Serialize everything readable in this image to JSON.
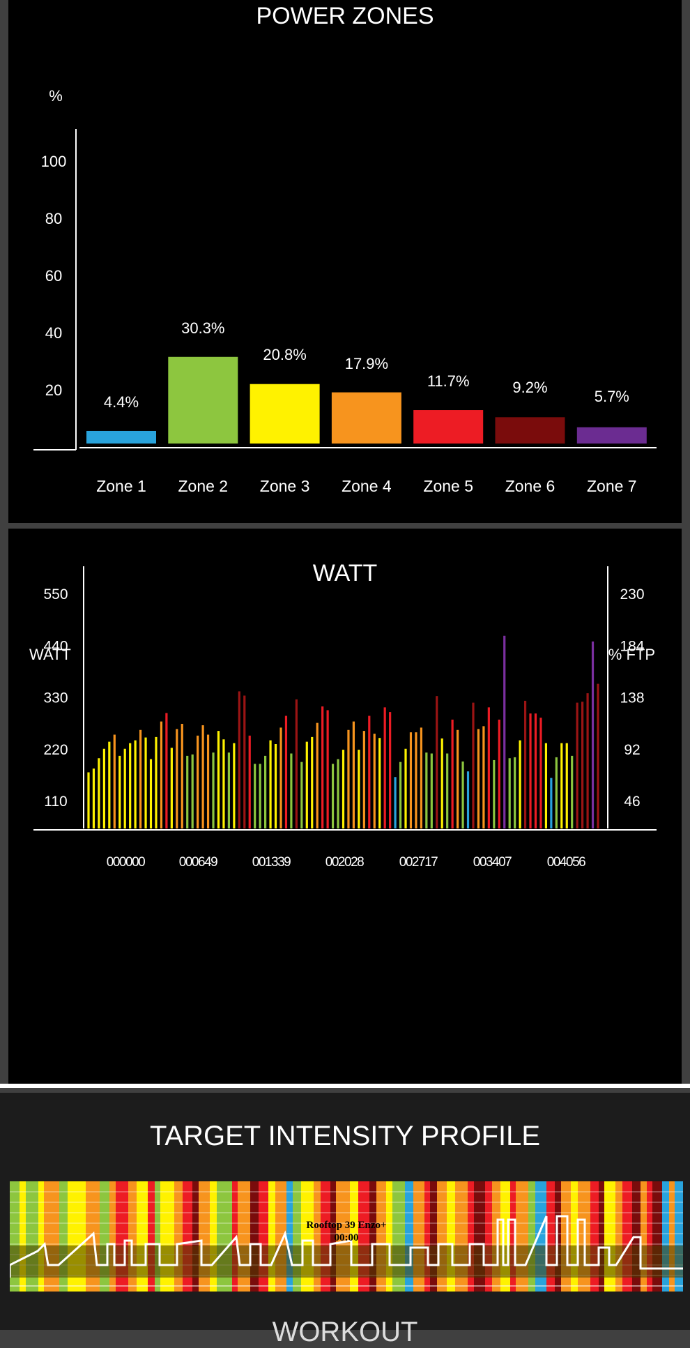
{
  "power_zones": {
    "title": "POWER ZONES",
    "chart_data": {
      "type": "bar",
      "ylabel": "%",
      "ylim": [
        0,
        100
      ],
      "yticks": [
        20,
        40,
        60,
        80,
        100
      ],
      "categories": [
        "Zone 1",
        "Zone 2",
        "Zone 3",
        "Zone 4",
        "Zone 5",
        "Zone 6",
        "Zone 7"
      ],
      "values": [
        4.4,
        30.3,
        20.8,
        17.9,
        11.7,
        9.2,
        5.7
      ],
      "data_labels": [
        "4.4%",
        "30.3%",
        "20.8%",
        "17.9%",
        "11.7%",
        "9.2%",
        "5.7%"
      ],
      "colors": [
        "#29a3dc",
        "#8dc63f",
        "#fff200",
        "#f7941e",
        "#ed1c24",
        "#7a0c0c",
        "#6b2c91"
      ]
    }
  },
  "watt": {
    "title": "WATT",
    "chart_data": {
      "type": "bar",
      "ylabel": "WATT",
      "ylabel_right": "% FTP",
      "ylim": [
        60,
        610
      ],
      "yticks": [
        110,
        220,
        330,
        440,
        550
      ],
      "yticks_right": [
        "46",
        "92",
        "138",
        "184",
        "230"
      ],
      "xticks": [
        "000000",
        "000649",
        "001339",
        "002028",
        "002717",
        "003407",
        "004056"
      ],
      "values": [
        170,
        178,
        200,
        220,
        235,
        250,
        205,
        220,
        232,
        238,
        260,
        244,
        198,
        245,
        278,
        296,
        222,
        262,
        273,
        205,
        208,
        248,
        270,
        250,
        212,
        258,
        240,
        212,
        232,
        342,
        333,
        248,
        188,
        188,
        205,
        238,
        230,
        265,
        290,
        210,
        325,
        192,
        235,
        245,
        275,
        310,
        302,
        188,
        198,
        218,
        260,
        278,
        218,
        258,
        290,
        252,
        243,
        308,
        298,
        160,
        192,
        220,
        255,
        255,
        265,
        212,
        210,
        332,
        242,
        210,
        282,
        260,
        193,
        172,
        318,
        262,
        268,
        308,
        196,
        282,
        460,
        200,
        202,
        238,
        322,
        295,
        295,
        286,
        232,
        158,
        202,
        232,
        232,
        205,
        318,
        320,
        338,
        448,
        358
      ],
      "bar_zones": [
        3,
        3,
        3,
        3,
        3,
        4,
        3,
        3,
        3,
        3,
        4,
        3,
        3,
        3,
        4,
        5,
        3,
        4,
        4,
        2,
        2,
        4,
        4,
        4,
        2,
        3,
        3,
        2,
        3,
        6,
        6,
        5,
        2,
        2,
        2,
        3,
        3,
        4,
        5,
        2,
        6,
        2,
        3,
        3,
        4,
        5,
        5,
        2,
        2,
        3,
        4,
        4,
        3,
        4,
        5,
        4,
        3,
        5,
        5,
        1,
        2,
        3,
        4,
        4,
        4,
        2,
        2,
        6,
        3,
        2,
        5,
        4,
        2,
        1,
        6,
        4,
        4,
        5,
        2,
        5,
        7,
        2,
        2,
        3,
        6,
        5,
        5,
        5,
        3,
        1,
        2,
        3,
        3,
        2,
        6,
        6,
        6,
        7,
        6
      ],
      "zone_colors": {
        "1": "#29a3dc",
        "2": "#8dc63f",
        "3": "#fff200",
        "4": "#f7941e",
        "5": "#ed1c24",
        "6": "#9b1414",
        "7": "#7b2fa0"
      }
    }
  },
  "profile": {
    "title": "TARGET INTENSITY PROFILE",
    "workout_name": "Rooftop 39 Enzo+",
    "time": "00:00",
    "below_text": "WORKOUT"
  }
}
